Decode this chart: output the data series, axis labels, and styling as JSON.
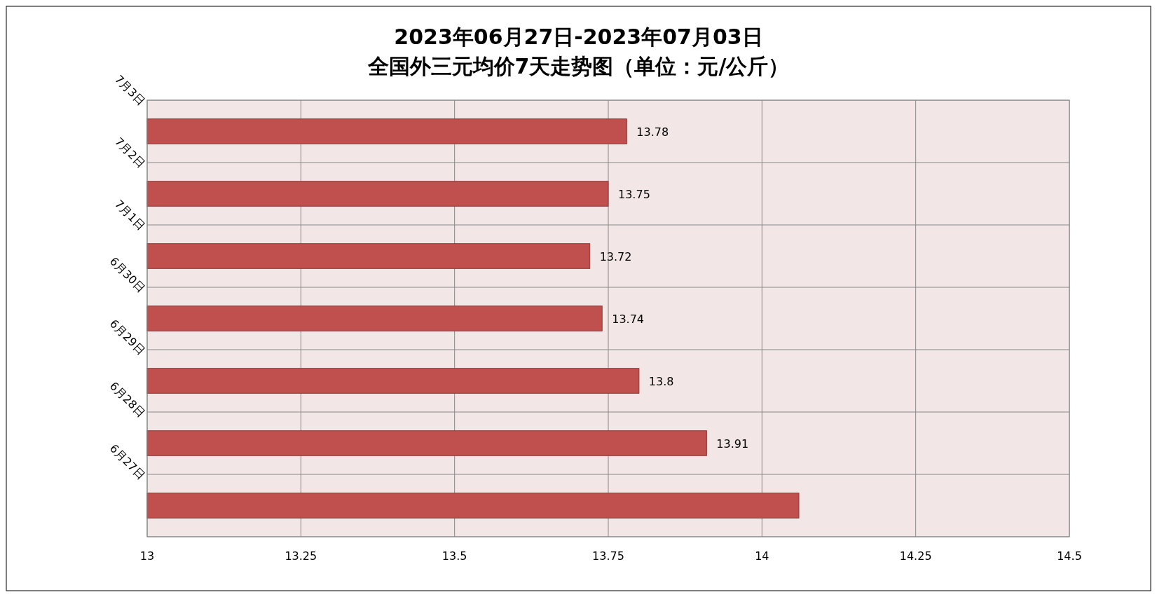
{
  "chart_data": {
    "type": "bar",
    "orientation": "horizontal",
    "title": "2023年06月27日-2023年07月03日",
    "subtitle": "全国外三元均价7天走势图（单位：元/公斤）",
    "categories": [
      "7月3日",
      "7月2日",
      "7月1日",
      "6月30日",
      "6月29日",
      "6月28日",
      "6月27日"
    ],
    "values": [
      13.78,
      13.75,
      13.72,
      13.74,
      13.8,
      13.91,
      14.06
    ],
    "value_labels": [
      "13.78",
      "13.75",
      "13.72",
      "13.74",
      "13.8",
      "13.91",
      null
    ],
    "color": "#c0504d",
    "xlim": [
      13,
      14.5
    ],
    "xticks": [
      13,
      13.25,
      13.5,
      13.75,
      14,
      14.25,
      14.5
    ],
    "grid": true
  }
}
